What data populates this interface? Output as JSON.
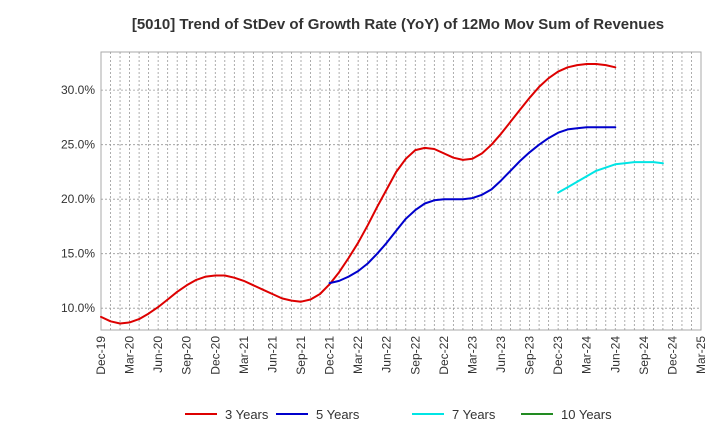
{
  "chart_data": {
    "type": "line",
    "title": "[5010]  Trend of StDev of Growth Rate (YoY) of 12Mo Mov Sum of Revenues",
    "xlabel": "",
    "ylabel": "",
    "ylim": [
      8.0,
      33.5
    ],
    "yticks": [
      10.0,
      15.0,
      20.0,
      25.0,
      30.0
    ],
    "ytick_labels": [
      "10.0%",
      "15.0%",
      "20.0%",
      "25.0%",
      "30.0%"
    ],
    "xtick_labels": [
      "Dec-19",
      "Mar-20",
      "Jun-20",
      "Sep-20",
      "Dec-20",
      "Mar-21",
      "Jun-21",
      "Sep-21",
      "Dec-21",
      "Mar-22",
      "Jun-22",
      "Sep-22",
      "Dec-22",
      "Mar-23",
      "Jun-23",
      "Sep-23",
      "Dec-23",
      "Mar-24",
      "Jun-24",
      "Sep-24",
      "Dec-24",
      "Mar-25"
    ],
    "grid": true,
    "legend_position": "bottom",
    "series": [
      {
        "name": "3 Years",
        "color": "#dd0000",
        "start_index": 0,
        "values": [
          9.2,
          8.8,
          8.6,
          8.7,
          9.0,
          9.5,
          10.1,
          10.8,
          11.5,
          12.1,
          12.6,
          12.9,
          13.0,
          13.0,
          12.8,
          12.5,
          12.1,
          11.7,
          11.3,
          10.9,
          10.7,
          10.6,
          10.8,
          11.3,
          12.2,
          13.3,
          14.6,
          16.0,
          17.6,
          19.3,
          20.9,
          22.5,
          23.7,
          24.5,
          24.7,
          24.6,
          24.2,
          23.8,
          23.6,
          23.7,
          24.2,
          25.0,
          26.0,
          27.1,
          28.2,
          29.3,
          30.3,
          31.1,
          31.7,
          32.1,
          32.3,
          32.4,
          32.4,
          32.3,
          32.1
        ]
      },
      {
        "name": "5 Years",
        "color": "#0000cc",
        "start_index": 24,
        "values": [
          12.3,
          12.5,
          12.9,
          13.4,
          14.1,
          15.0,
          16.0,
          17.1,
          18.2,
          19.0,
          19.6,
          19.9,
          20.0,
          20.0,
          20.0,
          20.1,
          20.4,
          20.9,
          21.7,
          22.6,
          23.5,
          24.3,
          25.0,
          25.6,
          26.1,
          26.4,
          26.5,
          26.6,
          26.6,
          26.6,
          26.6
        ]
      },
      {
        "name": "7 Years",
        "color": "#00e5e5",
        "start_index": 48,
        "values": [
          20.6,
          21.1,
          21.6,
          22.1,
          22.6,
          22.9,
          23.2,
          23.3,
          23.4,
          23.4,
          23.4,
          23.3
        ]
      },
      {
        "name": "10 Years",
        "color": "#228b22",
        "start_index": null,
        "values": []
      }
    ]
  }
}
